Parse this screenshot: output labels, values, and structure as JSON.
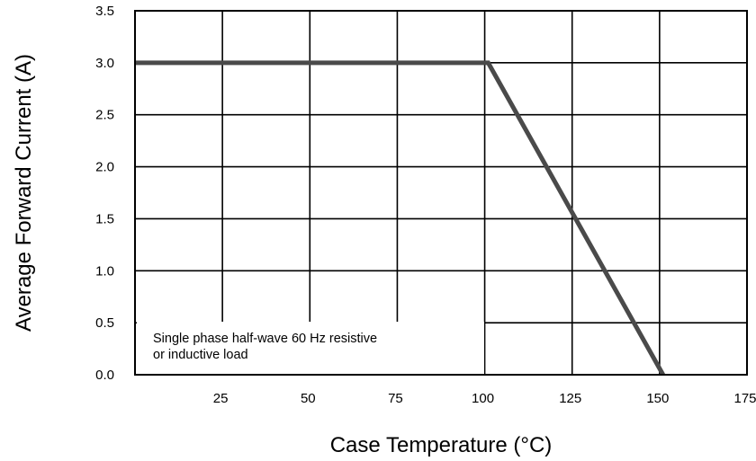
{
  "chart_data": {
    "type": "line",
    "title": "",
    "xlabel": "Case Temperature (°C)",
    "ylabel": "Average Forward Current  (A)",
    "xlim": [
      0,
      175
    ],
    "ylim": [
      0,
      3.5
    ],
    "x_ticks": [
      25,
      50,
      75,
      100,
      125,
      150,
      175
    ],
    "y_ticks": [
      "0.0",
      "0.5",
      "1.0",
      "1.5",
      "2.0",
      "2.5",
      "3.0",
      "3.5"
    ],
    "grid": true,
    "series": [
      {
        "x": [
          0,
          101,
          151
        ],
        "y": [
          3.0,
          3.0,
          0.0
        ]
      }
    ],
    "annotation": {
      "lines": [
        "Single phase half-wave 60 Hz resistive",
        "or inductive load"
      ]
    },
    "colors": {
      "curve": "#4a4a4a",
      "grid": "#000000",
      "background": "#ffffff"
    }
  }
}
